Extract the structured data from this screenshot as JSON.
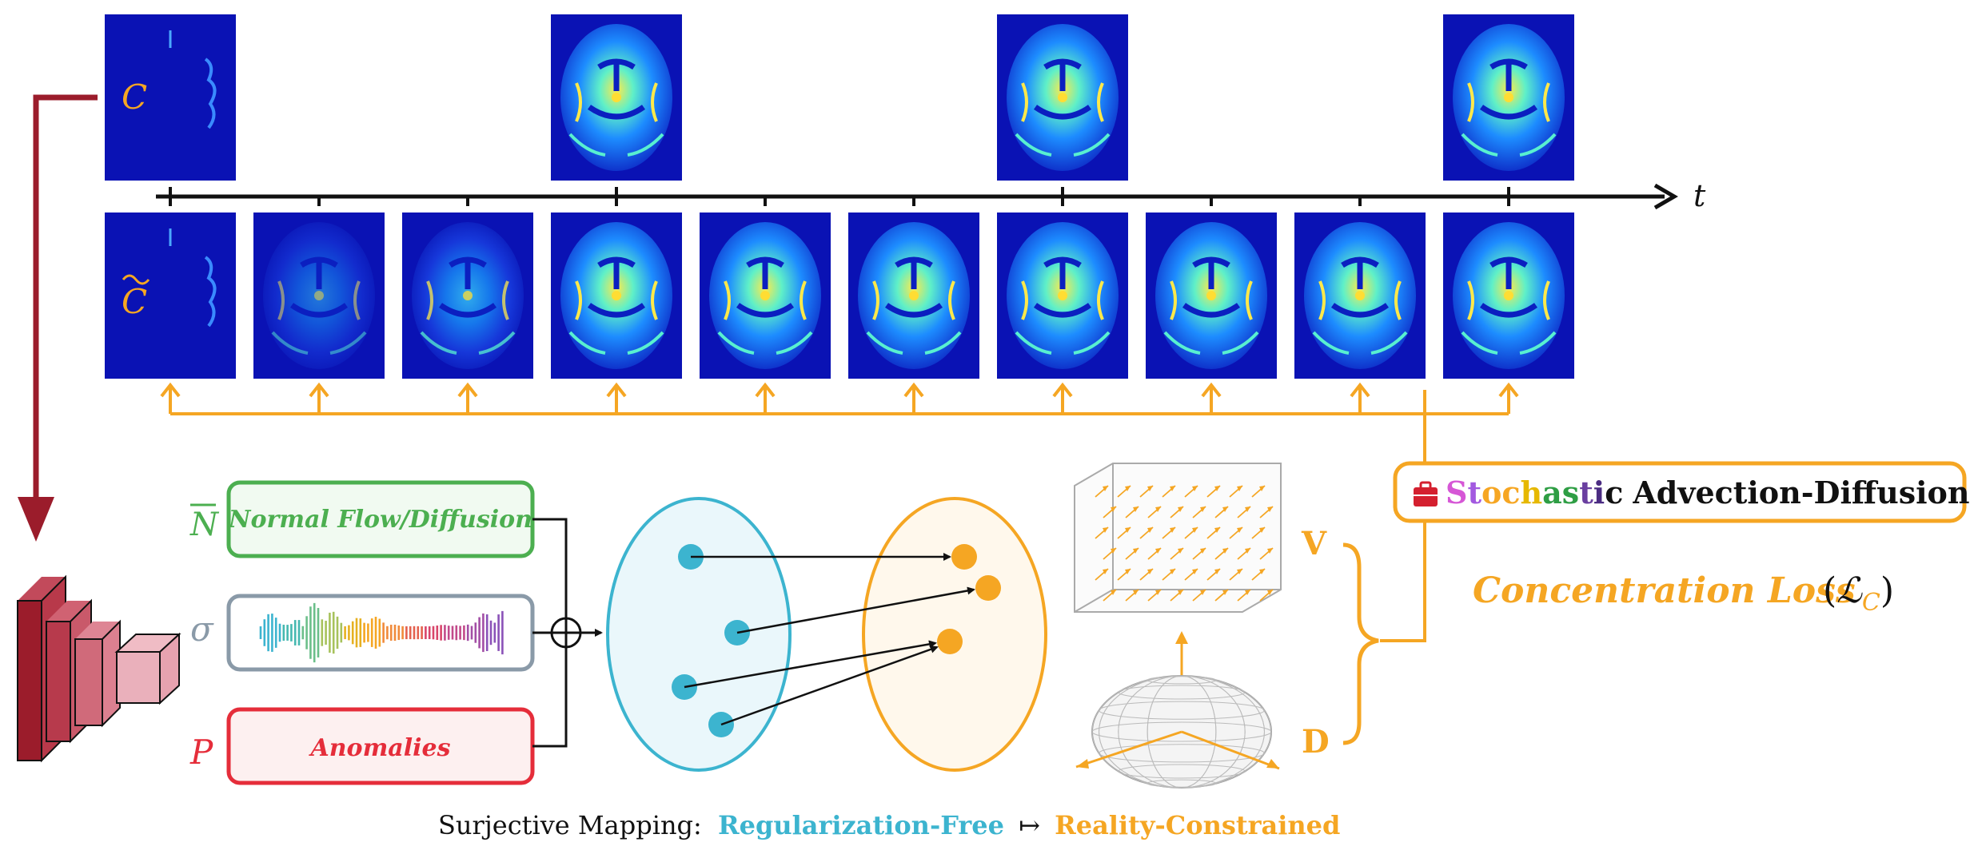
{
  "labels": {
    "c_symbol": "C",
    "c_tilde_symbol": "C",
    "time_symbol": "t",
    "n_bar_symbol": "N",
    "sigma_symbol": "σ",
    "p_symbol": "P",
    "v_symbol": "V",
    "d_symbol": "D"
  },
  "inputs": {
    "normal_flow_label": "Normal Flow/Diffusion",
    "anomalies_label": "Anomalies"
  },
  "sad_box": {
    "word_letters": [
      "S",
      "t",
      "o",
      "c",
      "h",
      "a",
      "s",
      "t",
      "i",
      "c"
    ],
    "rest": "Advection-Diffusion",
    "icon": "toolbox-icon"
  },
  "loss": {
    "text": "Concentration Loss",
    "symbol": "ℒ",
    "subscript": "C"
  },
  "caption": {
    "prefix": "Surjective Mapping:",
    "left": "Regularization-Free",
    "arrow": "↦",
    "right": "Reality-Constrained"
  },
  "colors": {
    "orange": "#f5a623",
    "green": "#4caf50",
    "gray": "#8a9aa8",
    "red": "#e52d3a",
    "teal": "#3cb4cf",
    "darkred": "#9b1c2b",
    "brainblue": "#0a12b4",
    "letters": [
      "#d657d6",
      "#a259e0",
      "#f6a623",
      "#f6a623",
      "#e6b800",
      "#2e9e44",
      "#2e9e44",
      "#6a3fa0",
      "#4b2c82",
      "#111111"
    ]
  },
  "brain_sizes_top": [
    0.15,
    1,
    1,
    1
  ],
  "brain_sizes_bottom": [
    0.15,
    0.5,
    0.75,
    1,
    1,
    1,
    1,
    1,
    1,
    1
  ]
}
